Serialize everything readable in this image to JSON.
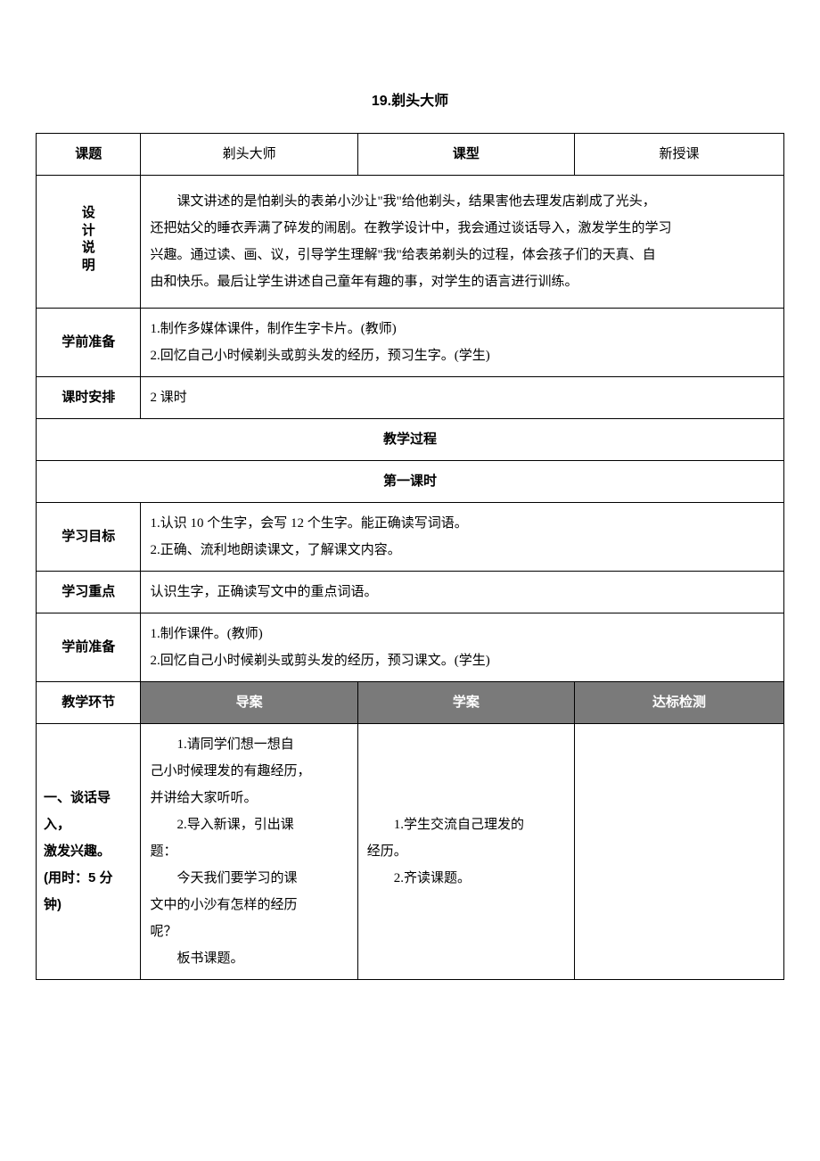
{
  "doc_title": "19.剃头大师",
  "row1": {
    "label1": "课题",
    "value1": "剃头大师",
    "label2": "课型",
    "value2": "新授课"
  },
  "design": {
    "label": "设计说明",
    "content_line1": "课文讲述的是怕剃头的表弟小沙让\"我\"给他剃头，结果害他去理发店剃成了光头，",
    "content_line2": "还把姑父的睡衣弄满了碎发的闹剧。在教学设计中，我会通过谈话导入，激发学生的学习",
    "content_line3": "兴趣。通过读、画、议，引导学生理解\"我\"给表弟剃头的过程，体会孩子们的天真、自",
    "content_line4": "由和快乐。最后让学生讲述自己童年有趣的事，对学生的语言进行训练。"
  },
  "preparation1": {
    "label": "学前准备",
    "line1": "1.制作多媒体课件，制作生字卡片。(教师)",
    "line2": "2.回忆自己小时候剃头或剪头发的经历，预习生字。(学生)"
  },
  "schedule": {
    "label": "课时安排",
    "value": "2 课时"
  },
  "process_header": "教学过程",
  "lesson_header": "第一课时",
  "objectives": {
    "label": "学习目标",
    "line1": "1.认识 10 个生字，会写 12 个生字。能正确读写词语。",
    "line2": "2.正确、流利地朗读课文，了解课文内容。"
  },
  "focus": {
    "label": "学习重点",
    "value": "认识生字，正确读写文中的重点词语。"
  },
  "preparation2": {
    "label": "学前准备",
    "line1": "1.制作课件。(教师)",
    "line2": "2.回忆自己小时候剃头或剪头发的经历，预习课文。(学生)"
  },
  "env_header": {
    "col1": "教学环节",
    "col2": "导案",
    "col3": "学案",
    "col4": "达标检测"
  },
  "section1": {
    "label_line1": "一、谈话导入，",
    "label_line2": "激发兴趣。",
    "label_line3": "(用时：5 分",
    "label_line4": "钟)",
    "daoan_line1": "1.请同学们想一想自",
    "daoan_line2": "己小时候理发的有趣经历，",
    "daoan_line3": "并讲给大家听听。",
    "daoan_line4": "2.导入新课，引出课",
    "daoan_line5": "题：",
    "daoan_line6": "今天我们要学习的课",
    "daoan_line7": "文中的小沙有怎样的经历",
    "daoan_line8": "呢？",
    "daoan_line9": "板书课题。",
    "xuean_line1": "1.学生交流自己理发的",
    "xuean_line2": "经历。",
    "xuean_line3": "2.齐读课题。"
  },
  "colors": {
    "background": "#ffffff",
    "text": "#000000",
    "border": "#000000",
    "env_header_bg": "#7a7a7a",
    "env_header_text": "#ffffff"
  },
  "fonts": {
    "body": "SimSun",
    "headers": "SimHei",
    "body_size": 15,
    "title_size": 16
  }
}
